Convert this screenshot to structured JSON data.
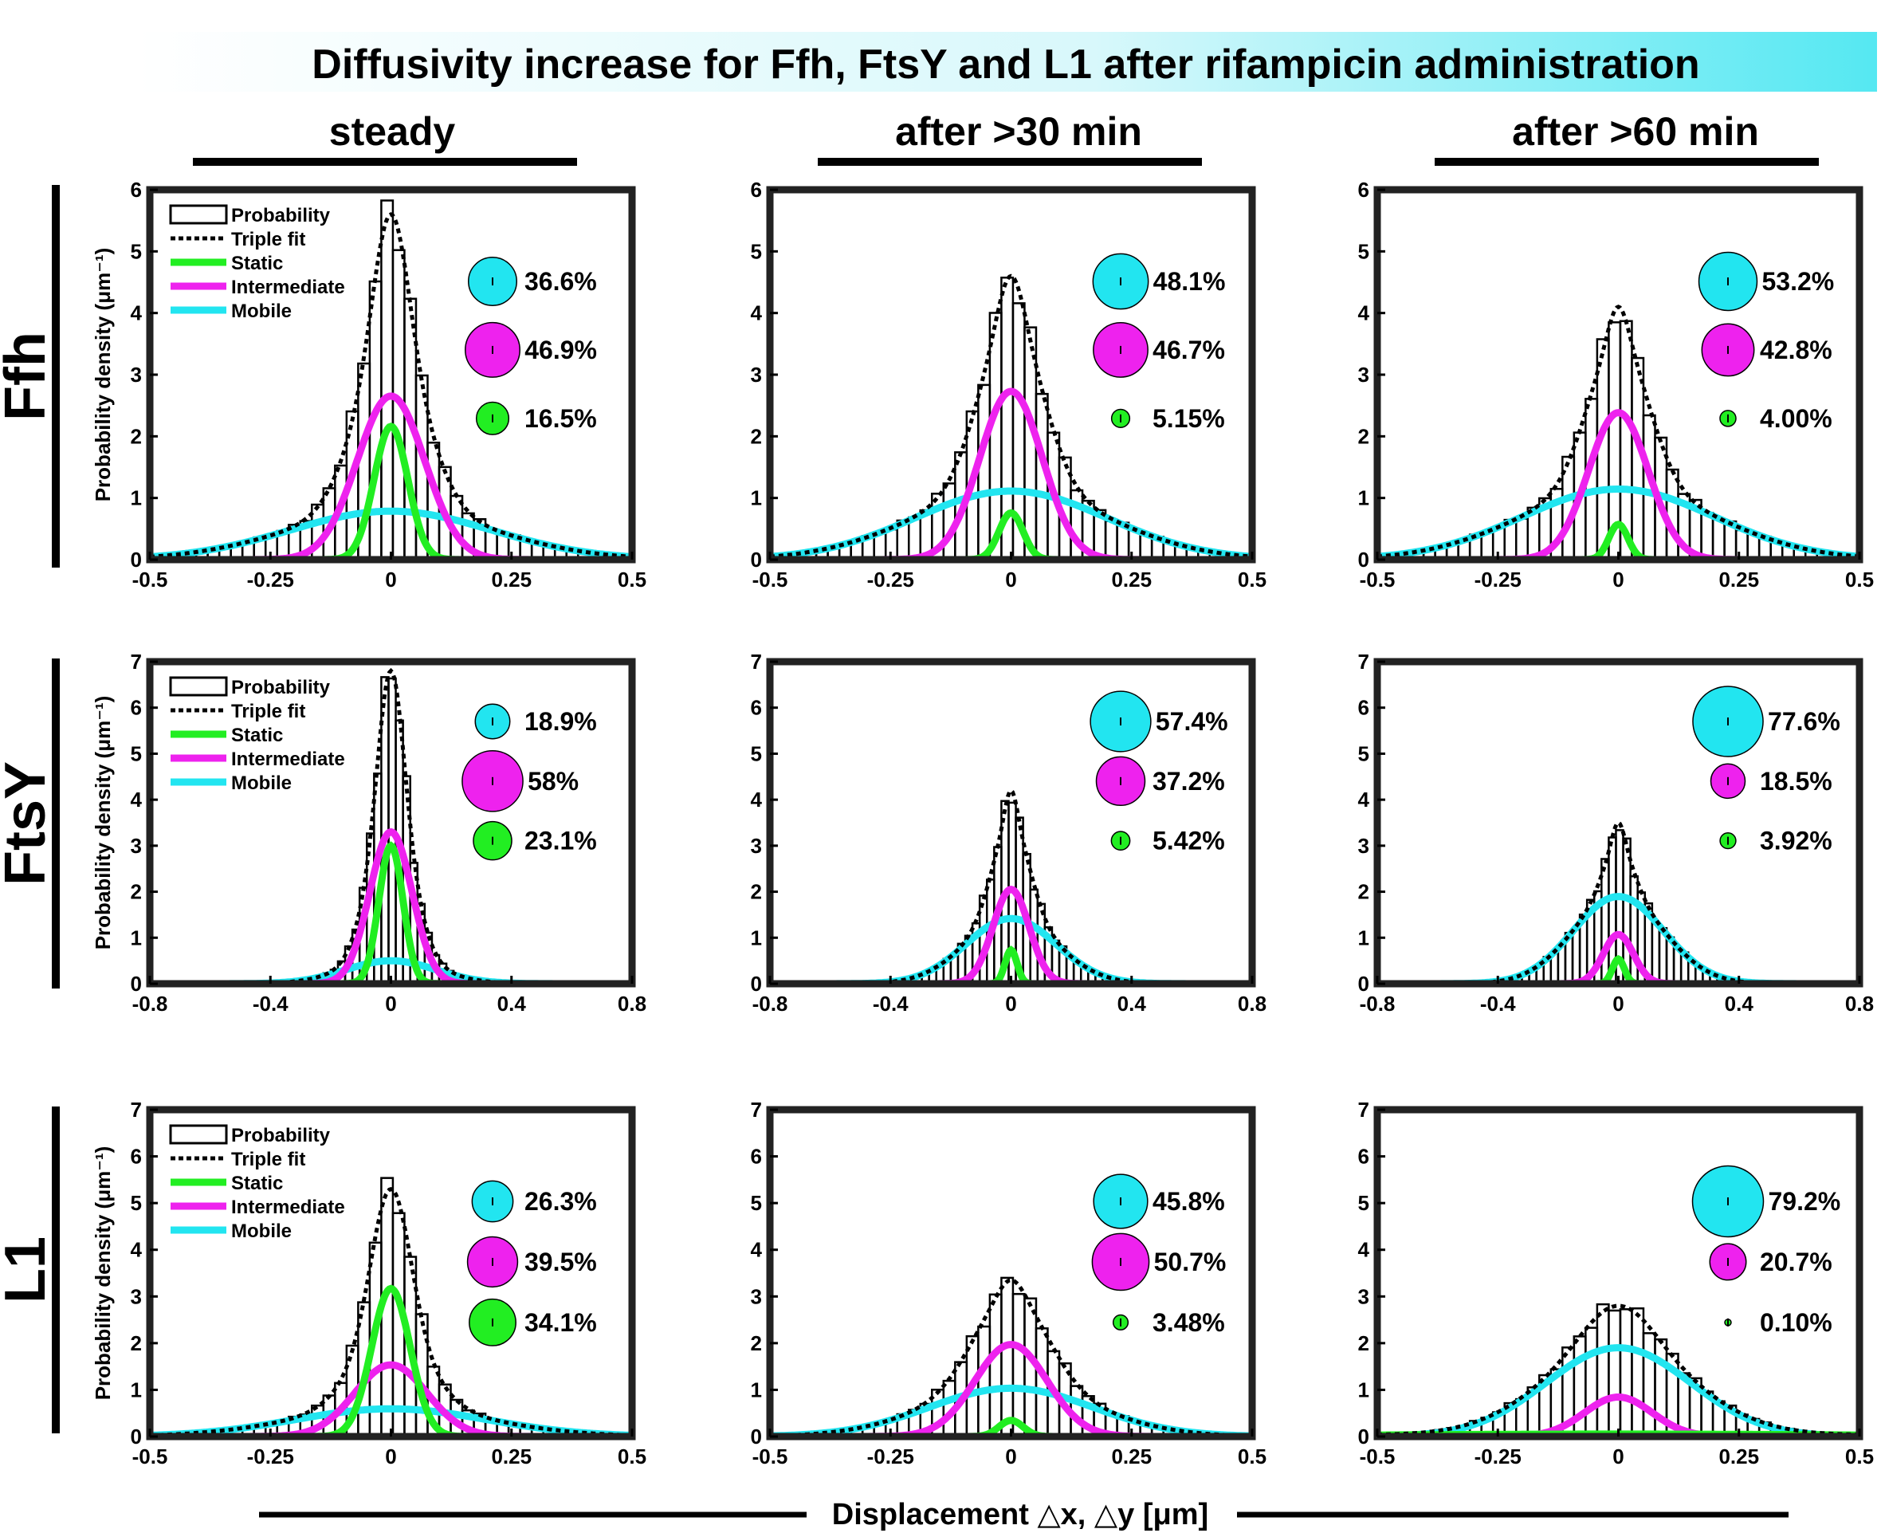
{
  "title": "Diffusivity increase for Ffh, FtsY and L1 after rifampicin administration",
  "columns": [
    "steady",
    "after >30 min",
    "after >60 min"
  ],
  "rows": [
    "Ffh",
    "FtsY",
    "L1"
  ],
  "xlabel_global": "Displacement △x, △y [μm]",
  "ylabel": "Probability density (μm⁻¹)",
  "legend": {
    "probability": "Probability",
    "triple_fit": "Triple fit",
    "static": "Static",
    "intermediate": "Intermediate",
    "mobile": "Mobile"
  },
  "colors": {
    "static": "#22ee22",
    "intermediate": "#ee22ee",
    "mobile": "#22e5f0",
    "title_fade": "#55e8f2"
  },
  "chart_data": [
    {
      "type": "bar",
      "row": "Ffh",
      "column": "steady",
      "xlim": [
        -0.5,
        0.5
      ],
      "ylim": [
        0,
        6
      ],
      "xticks": [
        "-0.5",
        "-0.25",
        "0",
        "0.25",
        "0.5"
      ],
      "yticks": [
        "0",
        "1",
        "2",
        "3",
        "4",
        "5",
        "6"
      ],
      "peak": 5.6,
      "static": {
        "amp": 2.2,
        "sigma": 0.035
      },
      "intermediate": {
        "amp": 2.7,
        "sigma": 0.07
      },
      "mobile": {
        "amp": 0.8,
        "sigma": 0.21
      },
      "fractions": {
        "mobile": "36.6%",
        "intermediate": "46.9%",
        "static": "16.5%"
      },
      "legend": true
    },
    {
      "type": "bar",
      "row": "Ffh",
      "column": "after >30 min",
      "xlim": [
        -0.5,
        0.5
      ],
      "ylim": [
        0,
        6
      ],
      "xticks": [
        "-0.5",
        "-0.25",
        "0",
        "0.25",
        "0.5"
      ],
      "yticks": [
        "0",
        "1",
        "2",
        "3",
        "4",
        "5",
        "6"
      ],
      "peak": 4.6,
      "static": {
        "amp": 0.75,
        "sigma": 0.025
      },
      "intermediate": {
        "amp": 2.7,
        "sigma": 0.065
      },
      "mobile": {
        "amp": 1.1,
        "sigma": 0.2
      },
      "fractions": {
        "mobile": "48.1%",
        "intermediate": "46.7%",
        "static": "5.15%"
      },
      "legend": false
    },
    {
      "type": "bar",
      "row": "Ffh",
      "column": "after >60 min",
      "xlim": [
        -0.5,
        0.5
      ],
      "ylim": [
        0,
        6
      ],
      "xticks": [
        "-0.5",
        "-0.25",
        "0",
        "0.25",
        "0.5"
      ],
      "yticks": [
        "0",
        "1",
        "2",
        "3",
        "4",
        "5",
        "6"
      ],
      "peak": 4.1,
      "static": {
        "amp": 0.6,
        "sigma": 0.02
      },
      "intermediate": {
        "amp": 2.5,
        "sigma": 0.062
      },
      "mobile": {
        "amp": 1.2,
        "sigma": 0.2
      },
      "fractions": {
        "mobile": "53.2%",
        "intermediate": "42.8%",
        "static": "4.00%"
      },
      "legend": false
    },
    {
      "type": "bar",
      "row": "FtsY",
      "column": "steady",
      "xlim": [
        -0.8,
        0.8
      ],
      "ylim": [
        0,
        7
      ],
      "xticks": [
        "-0.8",
        "-0.4",
        "0",
        "0.4",
        "0.8"
      ],
      "yticks": [
        "0",
        "1",
        "2",
        "3",
        "4",
        "5",
        "6",
        "7"
      ],
      "peak": 6.8,
      "static": {
        "amp": 3.0,
        "sigma": 0.04
      },
      "intermediate": {
        "amp": 3.3,
        "sigma": 0.07
      },
      "mobile": {
        "amp": 0.5,
        "sigma": 0.15
      },
      "fractions": {
        "mobile": "18.9%",
        "intermediate": "58%",
        "static": "23.1%"
      },
      "legend": true
    },
    {
      "type": "bar",
      "row": "FtsY",
      "column": "after >30 min",
      "xlim": [
        -0.8,
        0.8
      ],
      "ylim": [
        0,
        7
      ],
      "xticks": [
        "-0.8",
        "-0.4",
        "0",
        "0.4",
        "0.8"
      ],
      "yticks": [
        "0",
        "1",
        "2",
        "3",
        "4",
        "5",
        "6",
        "7"
      ],
      "peak": 4.2,
      "static": {
        "amp": 0.75,
        "sigma": 0.02
      },
      "intermediate": {
        "amp": 2.1,
        "sigma": 0.06
      },
      "mobile": {
        "amp": 1.45,
        "sigma": 0.15
      },
      "fractions": {
        "mobile": "57.4%",
        "intermediate": "37.2%",
        "static": "5.42%"
      },
      "legend": false
    },
    {
      "type": "bar",
      "row": "FtsY",
      "column": "after >60 min",
      "xlim": [
        -0.8,
        0.8
      ],
      "ylim": [
        0,
        7
      ],
      "xticks": [
        "-0.8",
        "-0.4",
        "0",
        "0.4",
        "0.8"
      ],
      "yticks": [
        "0",
        "1",
        "2",
        "3",
        "4",
        "5",
        "6",
        "7"
      ],
      "peak": 3.5,
      "static": {
        "amp": 0.55,
        "sigma": 0.02
      },
      "intermediate": {
        "amp": 1.1,
        "sigma": 0.05
      },
      "mobile": {
        "amp": 1.95,
        "sigma": 0.15
      },
      "fractions": {
        "mobile": "77.6%",
        "intermediate": "18.5%",
        "static": "3.92%"
      },
      "legend": false
    },
    {
      "type": "bar",
      "row": "L1",
      "column": "steady",
      "xlim": [
        -0.5,
        0.5
      ],
      "ylim": [
        0,
        7
      ],
      "xticks": [
        "-0.5",
        "-0.25",
        "0",
        "0.25",
        "0.5"
      ],
      "yticks": [
        "0",
        "1",
        "2",
        "3",
        "4",
        "5",
        "6",
        "7"
      ],
      "peak": 5.3,
      "static": {
        "amp": 3.2,
        "sigma": 0.04
      },
      "intermediate": {
        "amp": 1.55,
        "sigma": 0.075
      },
      "mobile": {
        "amp": 0.6,
        "sigma": 0.2
      },
      "fractions": {
        "mobile": "26.3%",
        "intermediate": "39.5%",
        "static": "34.1%"
      },
      "legend": true
    },
    {
      "type": "bar",
      "row": "L1",
      "column": "after >30 min",
      "xlim": [
        -0.5,
        0.5
      ],
      "ylim": [
        0,
        7
      ],
      "xticks": [
        "-0.5",
        "-0.25",
        "0",
        "0.25",
        "0.5"
      ],
      "yticks": [
        "0",
        "1",
        "2",
        "3",
        "4",
        "5",
        "6",
        "7"
      ],
      "peak": 3.35,
      "static": {
        "amp": 0.35,
        "sigma": 0.025
      },
      "intermediate": {
        "amp": 2.0,
        "sigma": 0.075
      },
      "mobile": {
        "amp": 1.05,
        "sigma": 0.17
      },
      "fractions": {
        "mobile": "45.8%",
        "intermediate": "50.7%",
        "static": "3.48%"
      },
      "legend": false
    },
    {
      "type": "bar",
      "row": "L1",
      "column": "after >60 min",
      "xlim": [
        -0.5,
        0.5
      ],
      "ylim": [
        0,
        7
      ],
      "xticks": [
        "-0.5",
        "-0.25",
        "0",
        "0.25",
        "0.5"
      ],
      "yticks": [
        "0",
        "1",
        "2",
        "3",
        "4",
        "5",
        "6",
        "7"
      ],
      "peak": 2.8,
      "static": {
        "amp": 0.05,
        "sigma": 0.5
      },
      "intermediate": {
        "amp": 0.8,
        "sigma": 0.07
      },
      "mobile": {
        "amp": 1.8,
        "sigma": 0.15
      },
      "fractions": {
        "mobile": "79.2%",
        "intermediate": "20.7%",
        "static": "0.10%"
      },
      "legend": false
    }
  ]
}
